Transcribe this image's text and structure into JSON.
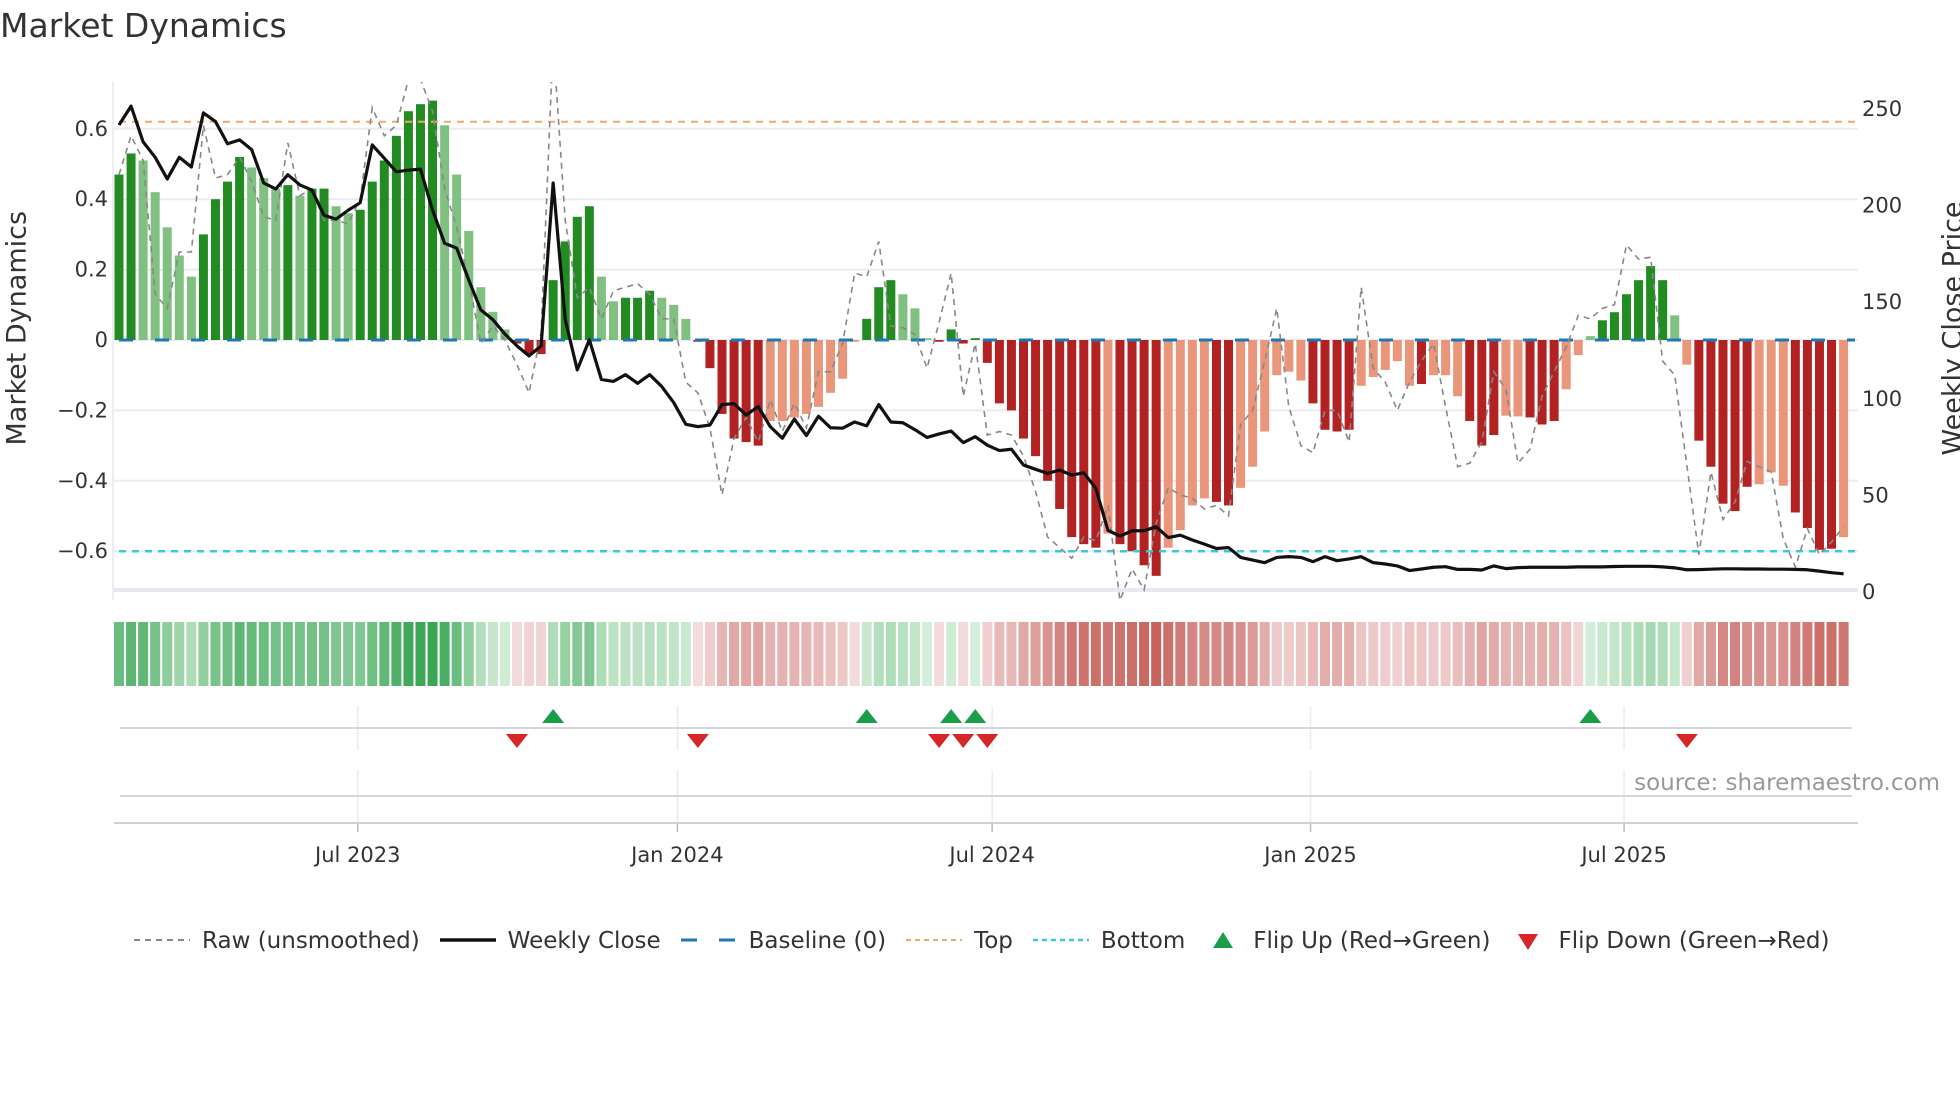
{
  "title": "Market Dynamics",
  "source": "source: sharemaestro.com",
  "colors": {
    "bar_pos_strong": "#228b22",
    "bar_pos_weak": "#80c080",
    "bar_neg_strong": "#b22222",
    "bar_neg_weak": "#e9967a",
    "raw": "#888888",
    "close": "#111111",
    "baseline": "#1f77b4",
    "top": "#f0a868",
    "bottom": "#3cc8dc",
    "flip_up": "#1a9e4a",
    "flip_down": "#d62728"
  },
  "chart_data": {
    "type": "bar",
    "title": "Market Dynamics",
    "xlabel": "",
    "ylabel": "Market Dynamics",
    "y2label": "Weekly Close Price",
    "ylim": [
      -0.74,
      0.74
    ],
    "y2lim": [
      0,
      264
    ],
    "yticks": [
      -0.6,
      -0.4,
      -0.2,
      0,
      0.2,
      0.4,
      0.6
    ],
    "ytick_labels": [
      "−0.6",
      "−0.4",
      "−0.2",
      "0",
      "0.2",
      "0.4",
      "0.6"
    ],
    "y2ticks": [
      0,
      50,
      100,
      150,
      200,
      250
    ],
    "y2tick_labels": [
      "0",
      "50",
      "100",
      "150",
      "200",
      "250"
    ],
    "x_unit": "week index",
    "xticks": [
      {
        "label": "Jul 2023",
        "week": 19.8
      },
      {
        "label": "Jan 2024",
        "week": 46.3
      },
      {
        "label": "Jul 2024",
        "week": 72.4
      },
      {
        "label": "Jan 2025",
        "week": 98.8
      },
      {
        "label": "Jul 2025",
        "week": 124.8
      }
    ],
    "top_level": 0.62,
    "bottom_level": -0.6,
    "baseline": 0,
    "momentum": [
      0.47,
      0.53,
      0.51,
      0.42,
      0.32,
      0.24,
      0.18,
      0.3,
      0.4,
      0.45,
      0.52,
      0.49,
      0.46,
      0.43,
      0.44,
      0.41,
      0.43,
      0.43,
      0.38,
      0.36,
      0.37,
      0.45,
      0.51,
      0.58,
      0.65,
      0.67,
      0.68,
      0.61,
      0.47,
      0.31,
      0.15,
      0.08,
      0.03,
      -0.01,
      -0.04,
      -0.04,
      0.17,
      0.28,
      0.35,
      0.38,
      0.18,
      0.11,
      0.12,
      0.12,
      0.14,
      0.12,
      0.1,
      0.06,
      -0.005,
      -0.08,
      -0.21,
      -0.28,
      -0.29,
      -0.3,
      -0.23,
      -0.23,
      -0.22,
      -0.21,
      -0.19,
      -0.15,
      -0.11,
      -0.005,
      0.06,
      0.15,
      0.17,
      0.13,
      0.09,
      0.005,
      -0.005,
      0.03,
      -0.01,
      0.005,
      -0.065,
      -0.18,
      -0.2,
      -0.28,
      -0.33,
      -0.4,
      -0.48,
      -0.56,
      -0.58,
      -0.59,
      -0.55,
      -0.58,
      -0.6,
      -0.64,
      -0.67,
      -0.59,
      -0.54,
      -0.47,
      -0.45,
      -0.46,
      -0.47,
      -0.42,
      -0.36,
      -0.26,
      -0.1,
      -0.09,
      -0.115,
      -0.18,
      -0.255,
      -0.26,
      -0.255,
      -0.13,
      -0.105,
      -0.085,
      -0.06,
      -0.13,
      -0.125,
      -0.1,
      -0.1,
      -0.16,
      -0.23,
      -0.3,
      -0.27,
      -0.215,
      -0.217,
      -0.22,
      -0.24,
      -0.23,
      -0.14,
      -0.043,
      0.011,
      0.056,
      0.079,
      0.13,
      0.17,
      0.21,
      0.17,
      0.07,
      -0.07,
      -0.286,
      -0.36,
      -0.465,
      -0.486,
      -0.417,
      -0.41,
      -0.376,
      -0.414,
      -0.49,
      -0.534,
      -0.596,
      -0.593,
      -0.56
    ],
    "strength": "DDLLLLLDDDDLLLDLDDLLDDDDDDDLLLLLLDDDDDDDLLDDDLLLDDDDDDLLLLLLLLDDDLLLDDDDDDDDDDDDDDLDDDDLLLLDDLLLLLLDDDDLLLLLDLLLDDDLLDDDLLLDDDDDDLLDDDDDLLLDDDDLL",
    "raw": [
      0.47,
      0.58,
      0.51,
      0.13,
      0.09,
      0.25,
      0.25,
      0.61,
      0.46,
      0.47,
      0.52,
      0.45,
      0.35,
      0.34,
      0.56,
      0.41,
      0.43,
      0.34,
      0.34,
      0.33,
      0.4,
      0.66,
      0.58,
      0.61,
      0.74,
      0.74,
      0.65,
      0.43,
      0.32,
      0.17,
      -0.01,
      0.04,
      0.0,
      -0.07,
      -0.15,
      0.02,
      0.85,
      0.34,
      0.12,
      0.15,
      0.06,
      0.14,
      0.15,
      0.16,
      0.13,
      0.06,
      0.06,
      -0.12,
      -0.15,
      -0.25,
      -0.44,
      -0.28,
      -0.22,
      -0.29,
      -0.17,
      -0.26,
      -0.18,
      -0.25,
      -0.09,
      -0.09,
      -0.01,
      0.19,
      0.18,
      0.28,
      0.04,
      0.035,
      0.016,
      -0.08,
      0.05,
      0.19,
      -0.16,
      -0.01,
      -0.27,
      -0.26,
      -0.27,
      -0.33,
      -0.43,
      -0.56,
      -0.59,
      -0.62,
      -0.56,
      -0.57,
      -0.47,
      -0.74,
      -0.65,
      -0.71,
      -0.52,
      -0.42,
      -0.44,
      -0.45,
      -0.48,
      -0.47,
      -0.5,
      -0.24,
      -0.2,
      -0.06,
      0.09,
      -0.19,
      -0.3,
      -0.32,
      -0.2,
      -0.2,
      -0.29,
      0.15,
      -0.08,
      -0.12,
      -0.2,
      -0.12,
      -0.06,
      -0.01,
      -0.19,
      -0.36,
      -0.35,
      -0.29,
      -0.09,
      -0.14,
      -0.35,
      -0.31,
      -0.16,
      -0.09,
      -0.02,
      0.07,
      0.06,
      0.09,
      0.1,
      0.27,
      0.23,
      0.235,
      -0.06,
      -0.1,
      -0.355,
      -0.61,
      -0.375,
      -0.51,
      -0.46,
      -0.345,
      -0.36,
      -0.375,
      -0.565,
      -0.645,
      -0.536,
      -0.61,
      -0.574,
      -0.53
    ],
    "weekly_close": [
      241.7,
      251.5,
      233,
      225,
      213.8,
      225,
      220,
      248,
      243.5,
      232,
      234,
      229,
      211.7,
      208.6,
      216,
      210.7,
      208,
      195,
      193,
      197.6,
      201.5,
      231.4,
      224.5,
      217.5,
      218.4,
      218.8,
      197.7,
      180.5,
      178,
      161.5,
      146,
      141,
      133.5,
      127.4,
      122.2,
      127.4,
      211.7,
      141,
      115,
      130.6,
      110,
      109,
      112.5,
      108,
      112.5,
      106.4,
      98,
      86.8,
      85.6,
      86.4,
      97,
      97.5,
      91.6,
      96,
      85.6,
      79.6,
      89.5,
      81,
      91,
      85,
      84.8,
      88,
      86,
      97,
      88,
      87.6,
      84,
      80,
      81.8,
      83.3,
      77.3,
      80.4,
      76,
      73.2,
      73.9,
      65.7,
      63.5,
      61.4,
      63.1,
      60.5,
      61.7,
      53.6,
      31.9,
      28.9,
      31.7,
      31.7,
      33.8,
      28.2,
      29.4,
      26.9,
      24.8,
      22.5,
      23,
      17.9,
      16.5,
      15.2,
      17.9,
      18.3,
      17.9,
      15.7,
      18.3,
      16.2,
      17.1,
      18.3,
      15.2,
      14.5,
      13.5,
      11.1,
      11.9,
      12.8,
      13.1,
      11.7,
      11.7,
      11.4,
      13.5,
      12.1,
      12.6,
      12.8,
      12.8,
      12.8,
      12.8,
      13,
      13,
      13,
      13.2,
      13.3,
      13.3,
      13.3,
      13,
      12.5,
      11.5,
      11.6,
      11.8,
      12,
      12,
      11.9,
      11.9,
      11.8,
      11.8,
      11.7,
      11.5,
      10.8,
      10,
      9.4
    ],
    "flip_up_weeks": [
      37,
      63,
      70,
      72,
      123
    ],
    "flip_down_weeks": [
      34,
      49,
      69,
      71,
      73,
      131
    ],
    "legend_position": "bottom",
    "legend": [
      {
        "key": "raw",
        "label": "Raw (unsmoothed)"
      },
      {
        "key": "close",
        "label": "Weekly Close"
      },
      {
        "key": "baseline",
        "label": "Baseline (0)"
      },
      {
        "key": "top",
        "label": "Top"
      },
      {
        "key": "bottom",
        "label": "Bottom"
      },
      {
        "key": "flip_up",
        "label": "Flip Up (Red→Green)"
      },
      {
        "key": "flip_down",
        "label": "Flip Down (Green→Red)"
      }
    ]
  }
}
